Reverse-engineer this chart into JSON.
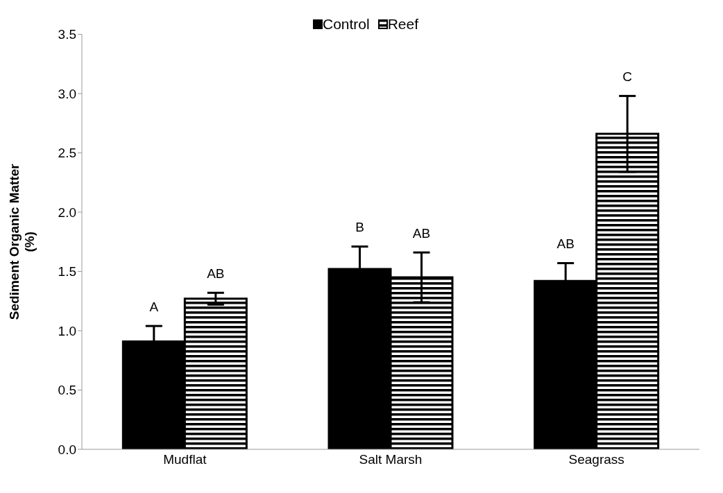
{
  "chart_data": {
    "type": "bar",
    "ylabel": "Sediment Organic Matter\n(%)",
    "categories": [
      "Mudflat",
      "Salt Marsh",
      "Seagrass"
    ],
    "series": [
      {
        "name": "Control",
        "color": "#000000",
        "values": [
          0.91,
          1.52,
          1.42
        ],
        "errors": [
          0.13,
          0.19,
          0.15
        ]
      },
      {
        "name": "Reef",
        "color": "#000000",
        "values": [
          1.27,
          1.45,
          2.66
        ],
        "errors": [
          0.05,
          0.21,
          0.32
        ]
      }
    ],
    "ylim": [
      0,
      3.5
    ],
    "yticks": [
      {
        "value": 0,
        "label": "0.0"
      },
      {
        "value": 0.5,
        "label": "0.5"
      },
      {
        "value": 1,
        "label": "1.0"
      },
      {
        "value": 1.5,
        "label": "1.5"
      },
      {
        "value": 2,
        "label": "2.0"
      },
      {
        "value": 2.5,
        "label": "2.5"
      },
      {
        "value": 3,
        "label": "3.0"
      },
      {
        "value": 3.5,
        "label": "3.5"
      }
    ],
    "annotations": [
      "A",
      "AB",
      "B",
      "AB",
      "AB",
      "C"
    ],
    "grid": false,
    "legend": "top"
  }
}
